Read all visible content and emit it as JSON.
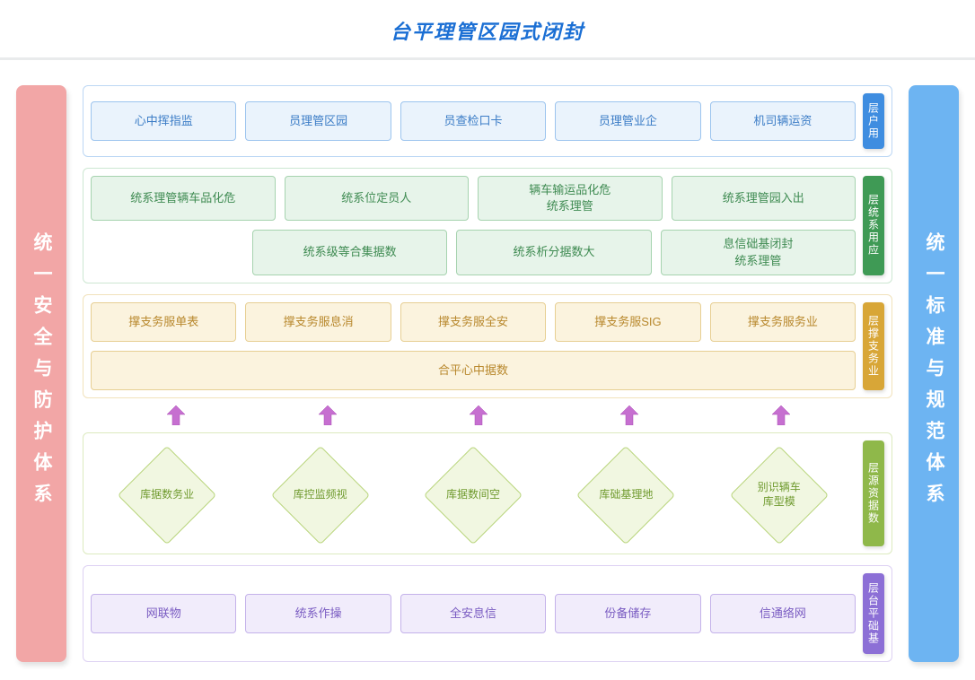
{
  "title": "台平理管区园式闭封",
  "left_pillar": {
    "text": "统一安全与防护体系",
    "bg": "#f2a6a6"
  },
  "right_pillar": {
    "text": "统一标准与规范体系",
    "bg": "#6db4f2"
  },
  "layers": [
    {
      "id": "user",
      "tab": "层户用",
      "tab_bg": "#3f8de0",
      "border": "#bcd7f4",
      "cell_bg": "#eaf3fc",
      "cell_border": "#9cc4ee",
      "cell_text": "#3b7cc6",
      "rows": [
        [
          "心中挥指监",
          "员理管区园",
          "员查检口卡",
          "员理管业企",
          "机司辆运资"
        ]
      ]
    },
    {
      "id": "app",
      "tab": "层统系用应",
      "tab_bg": "#3f9a55",
      "border": "#cde7d2",
      "cell_bg": "#e7f4ea",
      "cell_border": "#a6d3af",
      "cell_text": "#3f8b52",
      "rows": [
        [
          "统系理管辆车品化危",
          "统系位定员人",
          "辆车输运品化危\n统系理管",
          "统系理管园入出"
        ],
        [
          "统系级等合集据数",
          "统系析分据数大",
          "息信础基闭封\n统系理管"
        ]
      ],
      "row2_pad_left": true
    },
    {
      "id": "svc",
      "tab": "层撑支务业",
      "tab_bg": "#d8a637",
      "border": "#f1e2bb",
      "cell_bg": "#fbf3de",
      "cell_border": "#e7cf93",
      "cell_text": "#b8882d",
      "rows": [
        [
          "撑支务服单表",
          "撑支务服息消",
          "撑支务服全安",
          "撑支务服SIG",
          "撑支务服务业"
        ]
      ],
      "full_row": "合平心中据数"
    },
    {
      "id": "arrows",
      "arrow_color": "#c66fd0",
      "count": 5
    },
    {
      "id": "data",
      "tab": "层源资据数",
      "tab_bg": "#8fb84a",
      "border": "#dceabf",
      "diamond_bg": "#f1f7e1",
      "diamond_border": "#b9d57c",
      "cell_text": "#6f9a2e",
      "diamonds": [
        "库据数务业",
        "库控监频视",
        "库据数间空",
        "库础基理地",
        "别识辆车\n库型模"
      ]
    },
    {
      "id": "infra",
      "tab": "层台平础基",
      "tab_bg": "#8c6fd6",
      "border": "#ddd1f3",
      "cell_bg": "#f1ecfb",
      "cell_border": "#c4b2ea",
      "cell_text": "#7a5cc2",
      "rows": [
        [
          "网联物",
          "统系作操",
          "全安息信",
          "份备储存",
          "信通络网"
        ]
      ]
    }
  ]
}
